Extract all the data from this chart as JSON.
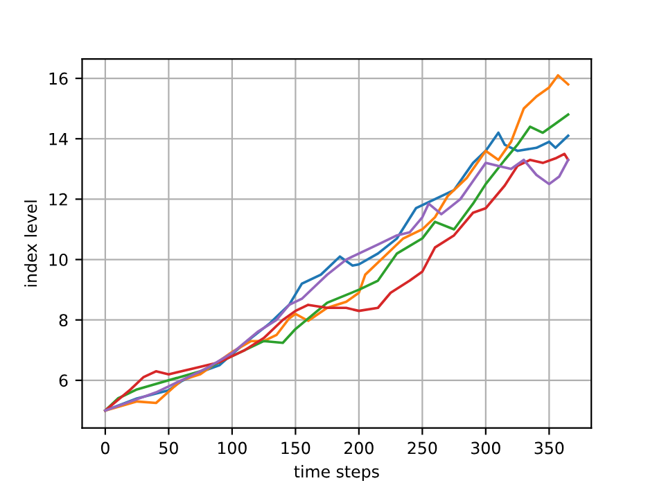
{
  "chart_data": {
    "type": "line",
    "xlabel": "time steps",
    "ylabel": "index level",
    "xlim": [
      -18.25,
      383.25
    ],
    "ylim": [
      4.42,
      16.64
    ],
    "xticks": [
      0,
      50,
      100,
      150,
      200,
      250,
      300,
      350
    ],
    "yticks": [
      6,
      8,
      10,
      12,
      14,
      16
    ],
    "grid": true,
    "marker": "none",
    "line_style": "solid",
    "series": [
      {
        "color": "#1f77b4",
        "x": [
          0,
          25,
          50,
          60,
          75,
          90,
          100,
          115,
          130,
          145,
          155,
          170,
          185,
          195,
          200,
          215,
          230,
          245,
          260,
          275,
          290,
          300,
          310,
          315,
          325,
          340,
          350,
          355,
          365
        ],
        "values": [
          5.0,
          5.4,
          5.67,
          5.97,
          6.27,
          6.5,
          6.87,
          7.4,
          7.9,
          8.5,
          9.2,
          9.5,
          10.1,
          9.8,
          9.84,
          10.2,
          10.7,
          11.7,
          12.0,
          12.3,
          13.2,
          13.6,
          14.2,
          13.8,
          13.6,
          13.7,
          13.9,
          13.7,
          14.1
        ]
      },
      {
        "color": "#ff7f0e",
        "x": [
          0,
          25,
          40,
          60,
          75,
          100,
          115,
          125,
          135,
          145,
          150,
          160,
          175,
          190,
          200,
          205,
          220,
          235,
          250,
          260,
          270,
          285,
          300,
          310,
          320,
          330,
          340,
          350,
          357,
          365
        ],
        "values": [
          5.0,
          5.3,
          5.25,
          6.0,
          6.2,
          6.94,
          7.3,
          7.3,
          7.5,
          8.05,
          8.2,
          7.97,
          8.4,
          8.6,
          8.9,
          9.5,
          10.1,
          10.7,
          11.0,
          11.4,
          12.1,
          12.7,
          13.6,
          13.3,
          13.9,
          15.0,
          15.4,
          15.7,
          16.1,
          15.8
        ]
      },
      {
        "color": "#2ca02c",
        "x": [
          0,
          10,
          25,
          50,
          75,
          100,
          125,
          140,
          150,
          175,
          200,
          215,
          230,
          250,
          260,
          275,
          290,
          300,
          315,
          325,
          335,
          345,
          355,
          365
        ],
        "values": [
          5.0,
          5.4,
          5.7,
          6.0,
          6.3,
          6.8,
          7.3,
          7.24,
          7.7,
          8.57,
          9.0,
          9.3,
          10.2,
          10.7,
          11.25,
          11.0,
          11.85,
          12.5,
          13.3,
          13.8,
          14.4,
          14.2,
          14.5,
          14.8
        ]
      },
      {
        "color": "#d62728",
        "x": [
          0,
          20,
          30,
          40,
          50,
          70,
          90,
          110,
          125,
          140,
          150,
          160,
          175,
          190,
          200,
          215,
          225,
          240,
          250,
          260,
          275,
          290,
          300,
          315,
          325,
          335,
          345,
          355,
          362,
          365
        ],
        "values": [
          5.0,
          5.7,
          6.1,
          6.3,
          6.2,
          6.4,
          6.6,
          7.0,
          7.4,
          8.0,
          8.3,
          8.5,
          8.4,
          8.4,
          8.3,
          8.4,
          8.9,
          9.3,
          9.6,
          10.4,
          10.8,
          11.55,
          11.7,
          12.45,
          13.1,
          13.3,
          13.2,
          13.35,
          13.5,
          13.3
        ]
      },
      {
        "color": "#9467bd",
        "x": [
          0,
          20,
          40,
          60,
          80,
          100,
          120,
          135,
          145,
          155,
          165,
          175,
          190,
          200,
          215,
          230,
          240,
          250,
          255,
          265,
          280,
          290,
          300,
          310,
          320,
          330,
          340,
          350,
          358,
          365
        ],
        "values": [
          5.0,
          5.3,
          5.6,
          6.0,
          6.4,
          6.9,
          7.6,
          8.0,
          8.5,
          8.7,
          9.1,
          9.5,
          10.0,
          10.2,
          10.5,
          10.8,
          10.9,
          11.4,
          11.85,
          11.5,
          12.0,
          12.6,
          13.2,
          13.1,
          13.0,
          13.3,
          12.8,
          12.5,
          12.75,
          13.3
        ]
      }
    ]
  }
}
